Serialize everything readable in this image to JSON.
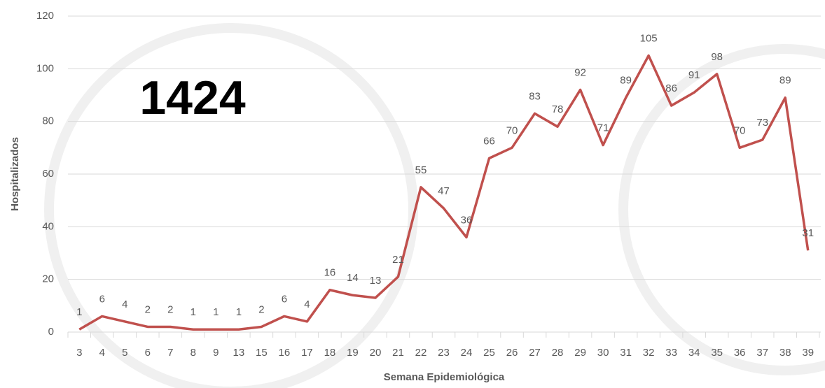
{
  "chart_data": {
    "type": "line",
    "annotation": "1424",
    "x_label": "Semana Epidemiológica",
    "y_label": "Hospitalizados",
    "categories": [
      "3",
      "4",
      "5",
      "6",
      "7",
      "8",
      "9",
      "13",
      "15",
      "16",
      "17",
      "18",
      "19",
      "20",
      "21",
      "22",
      "23",
      "24",
      "25",
      "26",
      "27",
      "28",
      "29",
      "30",
      "31",
      "32",
      "33",
      "34",
      "35",
      "36",
      "37",
      "38",
      "39"
    ],
    "series": [
      {
        "name": "Hospitalizados",
        "color": "#c0504d",
        "values": [
          1,
          6,
          4,
          2,
          2,
          1,
          1,
          1,
          2,
          6,
          4,
          16,
          14,
          13,
          21,
          55,
          47,
          36,
          66,
          70,
          83,
          78,
          92,
          71,
          89,
          105,
          86,
          91,
          98,
          70,
          73,
          89,
          31
        ]
      }
    ],
    "ylim": [
      0,
      120
    ],
    "yticks": [
      0,
      20,
      40,
      60,
      80,
      100,
      120
    ],
    "grid": true,
    "data_labels": true
  }
}
